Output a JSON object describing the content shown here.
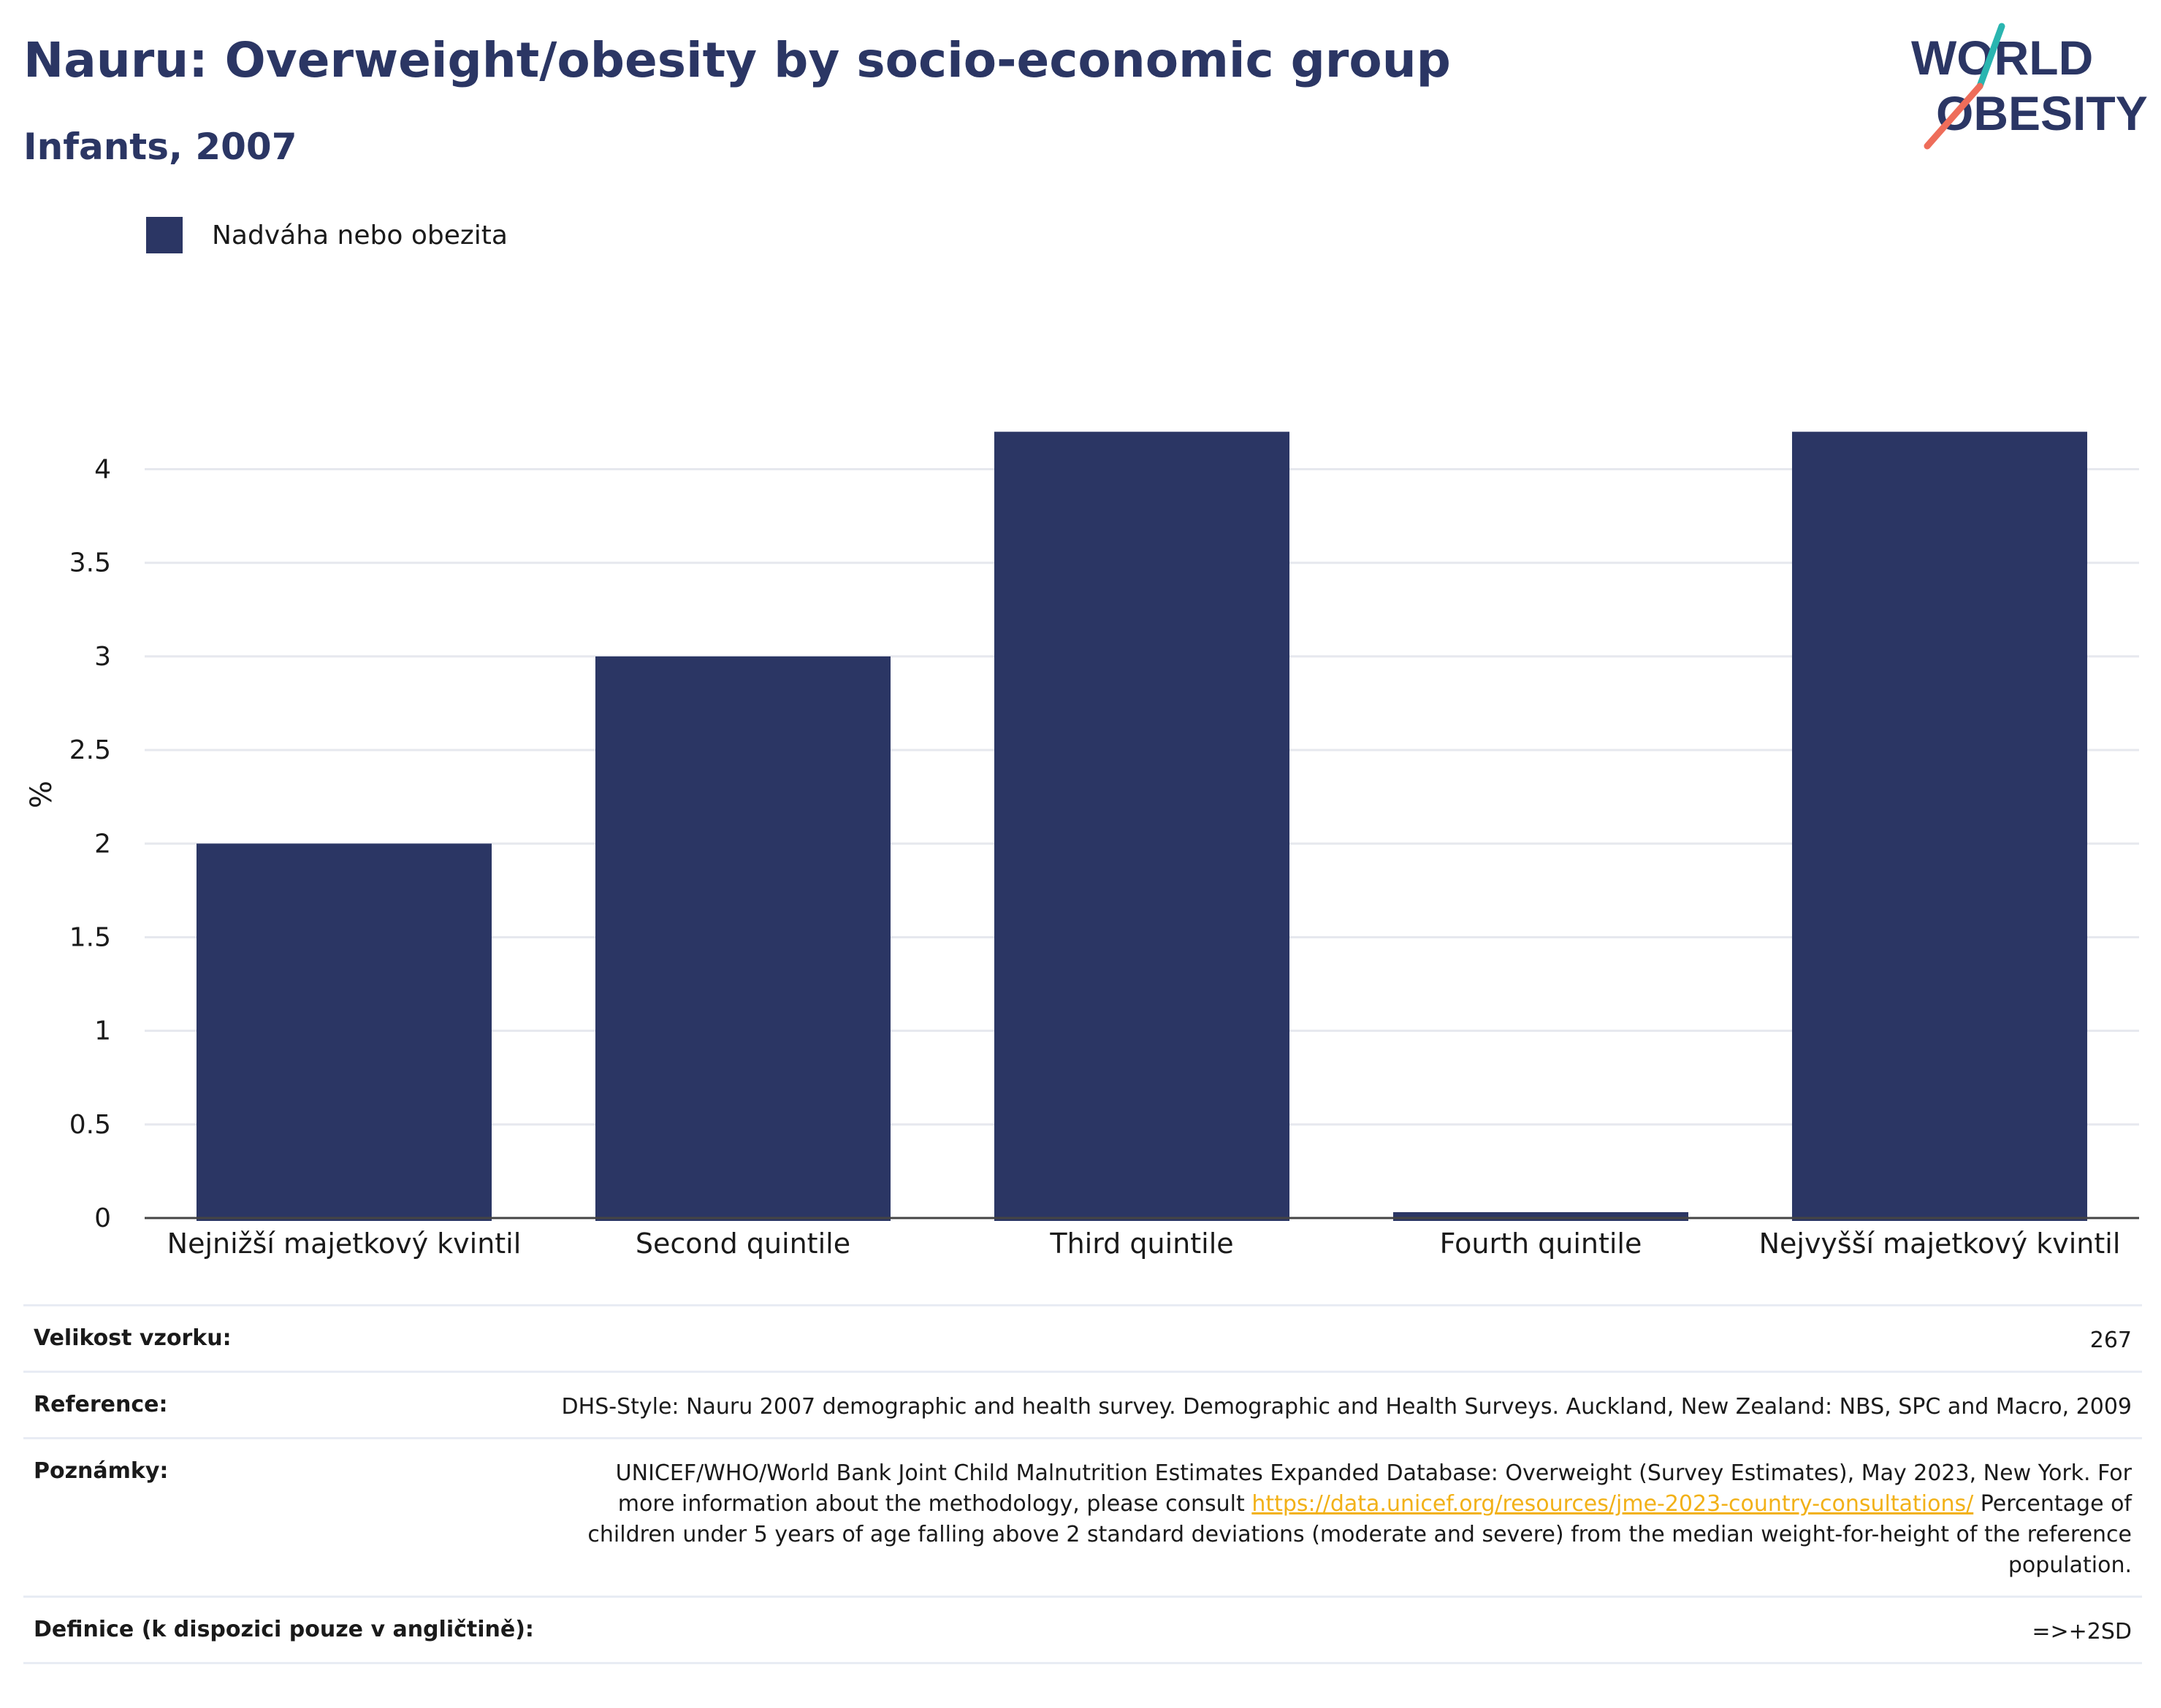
{
  "header": {
    "title": "Nauru: Overweight/obesity by socio-economic group",
    "subtitle": "Infants, 2007",
    "logo_text_line1": "WORLD",
    "logo_text_line2": "OBESITY"
  },
  "colors": {
    "bar": "#2b3664",
    "title": "#2b3664",
    "grid": "#e6e8ee",
    "link": "#f2b118",
    "logo_teal": "#2ab5b0",
    "logo_coral": "#ee6d5a"
  },
  "chart_data": {
    "type": "bar",
    "categories": [
      "Nejnižší majetkový kvintil",
      "Second quintile",
      "Third quintile",
      "Fourth quintile",
      "Nejvyšší majetkový kvintil"
    ],
    "series": [
      {
        "name": "Nadváha nebo obezita",
        "values": [
          2.0,
          3.0,
          4.2,
          0.0,
          4.2
        ]
      }
    ],
    "ylabel": "%",
    "xlabel": "",
    "ylim": [
      0,
      4.4
    ],
    "yticks": [
      0,
      0.5,
      1,
      1.5,
      2,
      2.5,
      3,
      3.5,
      4
    ],
    "grid": true,
    "legend": "top-left"
  },
  "info": {
    "sample_size_label": "Velikost vzorku:",
    "sample_size_value": "267",
    "reference_label": "Reference:",
    "reference_value": "DHS-Style: Nauru 2007 demographic and health survey. Demographic and Health Surveys. Auckland, New Zealand: NBS, SPC and Macro, 2009",
    "notes_label": "Poznámky:",
    "notes_text_1": "UNICEF/WHO/World Bank Joint Child Malnutrition Estimates Expanded Database: Overweight (Survey Estimates), May 2023, New York. For more information about the methodology, please consult ",
    "notes_link": "https://data.unicef.org/resources/jme-2023-country-consultations/",
    "notes_text_2": " Percentage of children under 5 years of age falling above 2 standard deviations (moderate and severe) from the median weight-for-height of the reference population.",
    "definition_label": "Definice (k dispozici pouze v angličtině):",
    "definition_value": "=>+2SD"
  }
}
